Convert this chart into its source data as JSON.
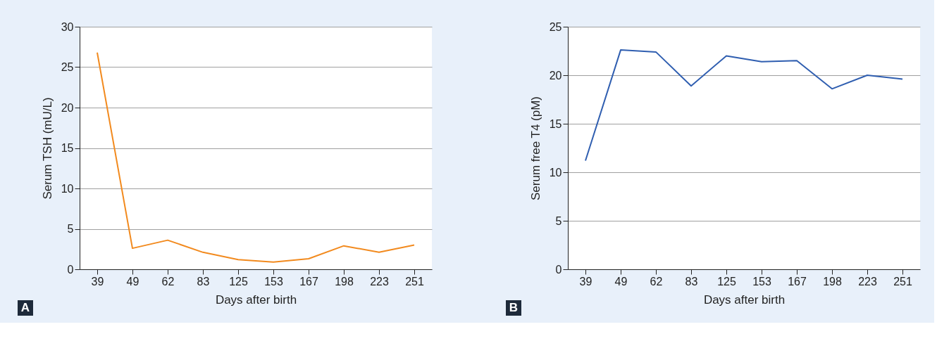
{
  "chart_data": [
    {
      "type": "line",
      "xlabel": "Days after birth",
      "ylabel": "Serum TSH (mU/L)",
      "categories": [
        "39",
        "49",
        "62",
        "83",
        "125",
        "153",
        "167",
        "198",
        "223",
        "251"
      ],
      "series": [
        {
          "color": "#f28a1e",
          "values": [
            26.8,
            2.6,
            3.6,
            2.1,
            1.2,
            0.9,
            1.3,
            2.9,
            2.1,
            3.0
          ]
        }
      ],
      "ylim": [
        0,
        30
      ],
      "yticks": [
        0,
        5,
        10,
        15,
        20,
        25,
        30
      ],
      "grid": "y",
      "annotations": [
        "A"
      ]
    },
    {
      "type": "line",
      "xlabel": "Days after birth",
      "ylabel": "Serum free T4 (pM)",
      "categories": [
        "39",
        "49",
        "62",
        "83",
        "125",
        "153",
        "167",
        "198",
        "223",
        "251"
      ],
      "series": [
        {
          "color": "#2f5eb0",
          "values": [
            11.2,
            22.6,
            22.4,
            18.9,
            22.0,
            21.4,
            21.5,
            18.6,
            20.0,
            19.6
          ]
        }
      ],
      "ylim": [
        0,
        25
      ],
      "yticks": [
        0,
        5,
        10,
        15,
        20,
        25
      ],
      "grid": "y",
      "annotations": [
        "B"
      ]
    }
  ]
}
